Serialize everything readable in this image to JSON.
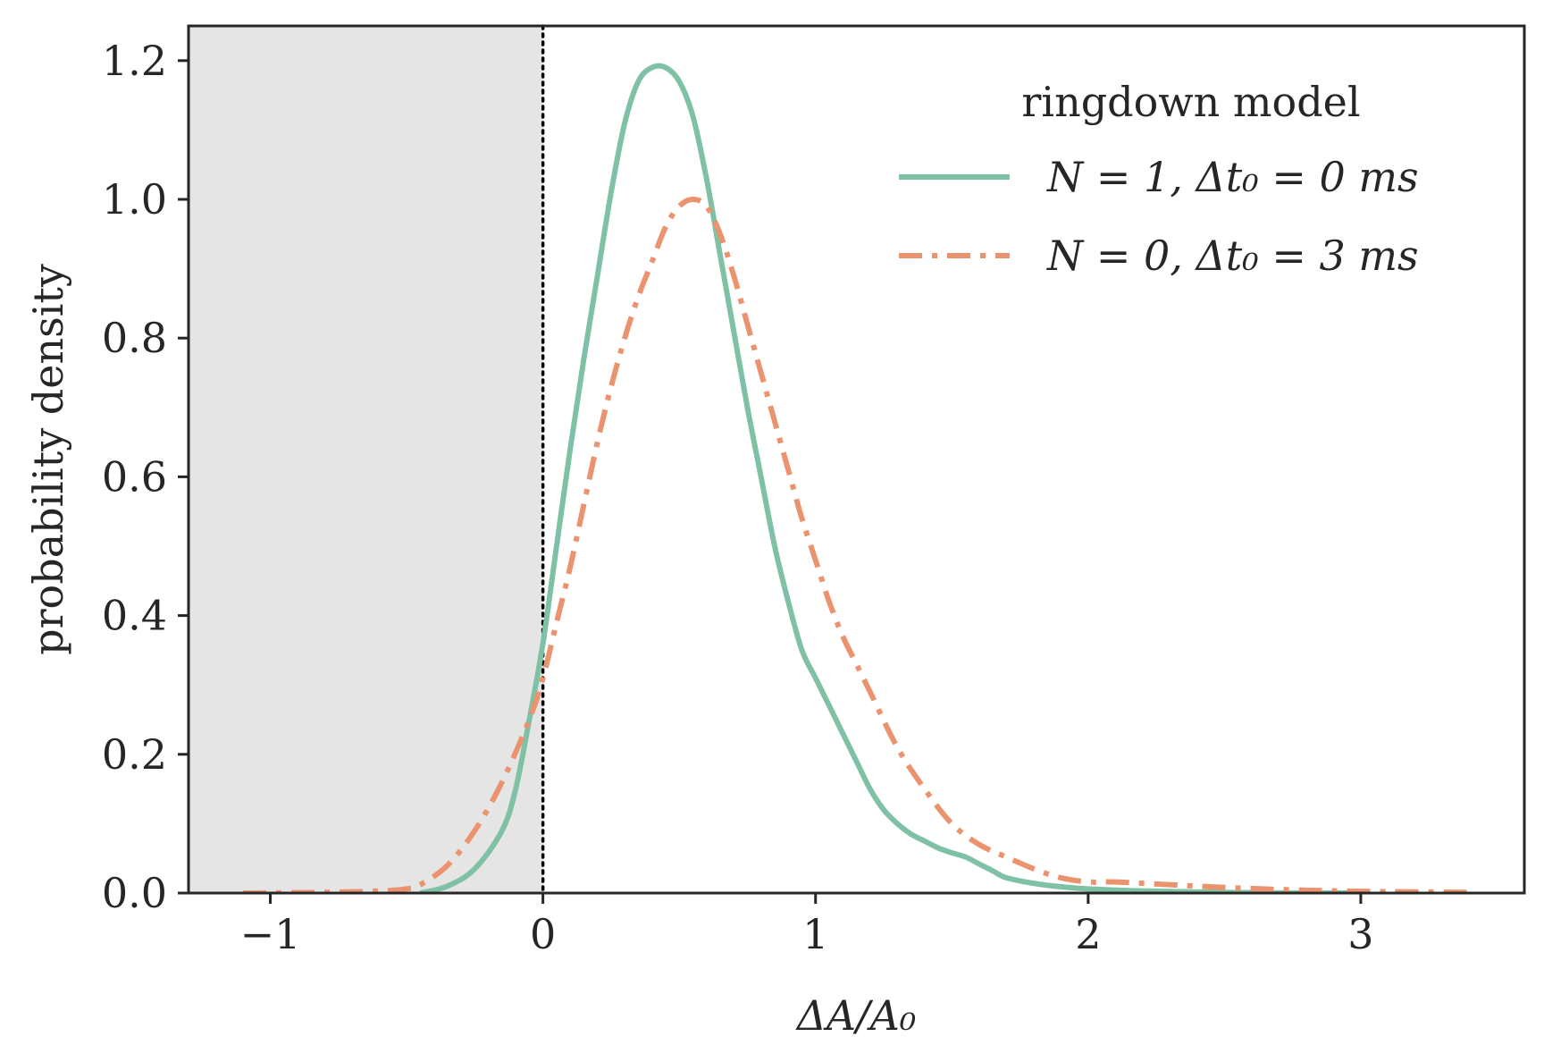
{
  "chart_data": {
    "type": "line",
    "title": "",
    "xlabel": "ΔA/A₀",
    "ylabel": "probability density",
    "xlim": [
      -1.3,
      3.6
    ],
    "ylim": [
      0,
      1.25
    ],
    "x_ticks": [
      -1,
      0,
      1,
      2,
      3
    ],
    "x_tick_labels": [
      "−1",
      "0",
      "1",
      "2",
      "3"
    ],
    "y_ticks": [
      0.0,
      0.2,
      0.4,
      0.6,
      0.8,
      1.0,
      1.2
    ],
    "y_tick_labels": [
      "0.0",
      "0.2",
      "0.4",
      "0.6",
      "0.8",
      "1.0",
      "1.2"
    ],
    "grid": false,
    "shaded_region": {
      "x_from": -1.3,
      "x_to": 0,
      "color": "#e5e5e5"
    },
    "vertical_line": {
      "x": 0,
      "style": "dotted",
      "color": "#000000"
    },
    "legend": {
      "title": "ringdown model",
      "placement": "top-right"
    },
    "series": [
      {
        "name": "N = 1, Δt₀ = 0 ms",
        "color": "#7fc1a4",
        "style": "solid",
        "x": [
          -0.45,
          -0.35,
          -0.25,
          -0.15,
          -0.1,
          -0.05,
          0.0,
          0.05,
          0.1,
          0.15,
          0.2,
          0.25,
          0.3,
          0.35,
          0.4,
          0.45,
          0.5,
          0.55,
          0.6,
          0.65,
          0.7,
          0.75,
          0.8,
          0.85,
          0.9,
          0.95,
          1.0,
          1.05,
          1.1,
          1.15,
          1.2,
          1.25,
          1.3,
          1.35,
          1.4,
          1.45,
          1.5,
          1.55,
          1.6,
          1.65,
          1.7,
          1.8,
          1.9,
          2.0,
          2.2,
          2.5,
          2.8,
          3.0
        ],
        "y": [
          0.0,
          0.01,
          0.035,
          0.09,
          0.15,
          0.25,
          0.36,
          0.5,
          0.64,
          0.77,
          0.89,
          1.01,
          1.11,
          1.17,
          1.19,
          1.19,
          1.17,
          1.12,
          1.03,
          0.92,
          0.81,
          0.7,
          0.6,
          0.5,
          0.42,
          0.35,
          0.31,
          0.27,
          0.23,
          0.19,
          0.15,
          0.12,
          0.1,
          0.085,
          0.075,
          0.065,
          0.058,
          0.052,
          0.042,
          0.032,
          0.022,
          0.014,
          0.009,
          0.006,
          0.003,
          0.001,
          0.0,
          0.0
        ]
      },
      {
        "name": "N = 0, Δt₀ = 3 ms",
        "color": "#eb936e",
        "style": "dashdot",
        "x": [
          -1.1,
          -0.8,
          -0.6,
          -0.5,
          -0.45,
          -0.35,
          -0.25,
          -0.15,
          -0.05,
          0.0,
          0.05,
          0.1,
          0.15,
          0.2,
          0.25,
          0.3,
          0.35,
          0.4,
          0.45,
          0.5,
          0.55,
          0.6,
          0.65,
          0.7,
          0.75,
          0.8,
          0.85,
          0.9,
          0.95,
          1.0,
          1.05,
          1.1,
          1.15,
          1.2,
          1.3,
          1.4,
          1.5,
          1.6,
          1.7,
          1.8,
          1.9,
          2.0,
          2.1,
          2.3,
          2.5,
          2.8,
          3.1,
          3.4
        ],
        "y": [
          0.0,
          0.001,
          0.003,
          0.006,
          0.012,
          0.04,
          0.09,
          0.16,
          0.25,
          0.31,
          0.39,
          0.47,
          0.56,
          0.65,
          0.73,
          0.8,
          0.86,
          0.91,
          0.96,
          0.99,
          1.0,
          0.99,
          0.95,
          0.89,
          0.82,
          0.75,
          0.68,
          0.61,
          0.54,
          0.48,
          0.42,
          0.37,
          0.33,
          0.29,
          0.21,
          0.15,
          0.1,
          0.07,
          0.052,
          0.035,
          0.022,
          0.016,
          0.016,
          0.012,
          0.008,
          0.004,
          0.002,
          0.001
        ]
      }
    ]
  }
}
